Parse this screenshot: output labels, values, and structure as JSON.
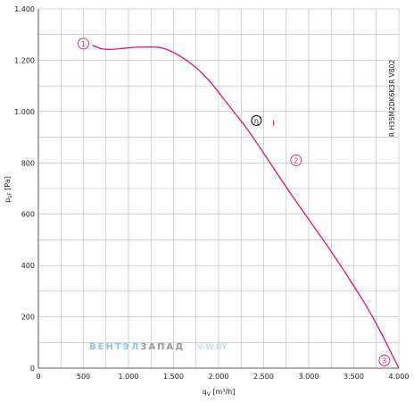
{
  "chart_data": {
    "type": "line",
    "title": "",
    "xlabel": "q_V [m³/h]",
    "xlabel_main": "q",
    "xlabel_sub": "V",
    "xlabel_unit": " [m³/h]",
    "ylabel": "p_sF [Pa]",
    "ylabel_main": "p",
    "ylabel_sub": "sF",
    "ylabel_unit": " [Pa]",
    "xlim": [
      0,
      4000
    ],
    "ylim": [
      0,
      1400
    ],
    "grid": true,
    "x_ticks": [
      0,
      500,
      1000,
      1500,
      2000,
      2500,
      3000,
      3500,
      4000
    ],
    "x_tick_labels": [
      "0",
      "500",
      "1.000",
      "1.500",
      "2.000",
      "2.500",
      "3.000",
      "3.500",
      "4.000"
    ],
    "y_ticks": [
      0,
      200,
      400,
      600,
      800,
      1000,
      1200,
      1400
    ],
    "y_tick_labels": [
      "0",
      "200",
      "400",
      "600",
      "800",
      "1.000",
      "1.200",
      "1.400"
    ],
    "series": [
      {
        "color": "#e0107a",
        "x": [
          600,
          700,
          800,
          900,
          1000,
          1100,
          1200,
          1300,
          1400,
          1500,
          1600,
          1700,
          1800,
          1900,
          2000,
          2100,
          2200,
          2300,
          2400,
          2500,
          2600,
          2700,
          2800,
          2900,
          3000,
          3100,
          3200,
          3300,
          3400,
          3500,
          3600,
          3700,
          3800,
          3900,
          4000
        ],
        "y": [
          1258,
          1245,
          1242,
          1245,
          1248,
          1251,
          1252,
          1251,
          1245,
          1230,
          1210,
          1185,
          1155,
          1118,
          1075,
          1030,
          985,
          940,
          890,
          838,
          785,
          732,
          680,
          630,
          580,
          530,
          480,
          428,
          375,
          320,
          265,
          205,
          140,
          70,
          0
        ]
      }
    ],
    "markers": [
      {
        "label": "1",
        "x": 500,
        "y": 1265
      },
      {
        "label": "2",
        "x": 2860,
        "y": 810
      },
      {
        "label": "3",
        "x": 3840,
        "y": 30
      }
    ],
    "operating_point": {
      "label": "η",
      "x": 2420,
      "y": 965,
      "tick_x": 2610,
      "tick_y": 955
    },
    "model_label": "R H35M2DK6K3R V802",
    "watermark": {
      "part1": "ВЕНТЭЛ",
      "part2": "ЗАПАД",
      "part3": "V-W.BY"
    },
    "colors": {
      "curve": "#e0107a",
      "grid": "#b8b8b8",
      "wm1": "#8fc4e6",
      "wm2": "#9a9a9a",
      "wm3": "#b8ccd8"
    }
  }
}
